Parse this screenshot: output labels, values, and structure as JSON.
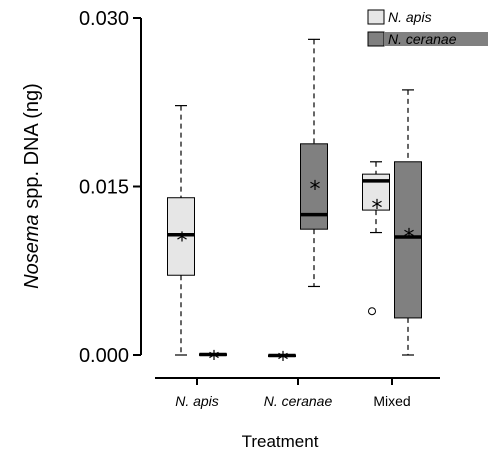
{
  "chart_data": {
    "type": "boxplot",
    "title": "",
    "xlabel": "Treatment",
    "ylabel_prefix": "Nosema",
    "ylabel_suffix": " spp. DNA (ng)",
    "ylim": [
      0.0,
      0.03
    ],
    "yticks": [
      0.0,
      0.015,
      0.03
    ],
    "ytick_labels": [
      "0.000",
      "0.015",
      "0.030"
    ],
    "categories": [
      "N. apis",
      "N. ceranae",
      "Mixed"
    ],
    "legend": {
      "position": "top-right",
      "entries": [
        {
          "name": "N. apis",
          "color": "#e6e6e6"
        },
        {
          "name": "N. ceranae",
          "color": "#808080"
        }
      ]
    },
    "mean_marker": "*",
    "outlier_marker": "o",
    "boxes": [
      {
        "category": "N. apis",
        "series": "N. apis",
        "min": 0.0,
        "q1": 0.0071,
        "median": 0.0107,
        "q3": 0.014,
        "max": 0.0222,
        "mean": 0.0106,
        "outliers": []
      },
      {
        "category": "N. apis",
        "series": "N. ceranae",
        "min": 0.0,
        "q1": 0.0,
        "median": 5e-05,
        "q3": 0.0001,
        "max": 0.0001,
        "mean": 5e-05,
        "outliers": []
      },
      {
        "category": "N. ceranae",
        "series": "N. apis",
        "min": -0.0001,
        "q1": -0.0001,
        "median": -5e-05,
        "q3": 0.0,
        "max": 0.0,
        "mean": -5e-05,
        "outliers": []
      },
      {
        "category": "N. ceranae",
        "series": "N. ceranae",
        "min": 0.0061,
        "q1": 0.0112,
        "median": 0.0125,
        "q3": 0.0188,
        "max": 0.0281,
        "mean": 0.0152,
        "outliers": []
      },
      {
        "category": "Mixed",
        "series": "N. apis",
        "min": 0.0109,
        "q1": 0.0129,
        "median": 0.0155,
        "q3": 0.0161,
        "max": 0.0172,
        "mean": 0.0135,
        "outliers": [
          0.0039
        ]
      },
      {
        "category": "Mixed",
        "series": "N. ceranae",
        "min": 0.0,
        "q1": 0.0033,
        "median": 0.0105,
        "q3": 0.0172,
        "max": 0.0236,
        "mean": 0.0109,
        "outliers": []
      }
    ],
    "colors": {
      "n_apis": "#e6e6e6",
      "n_ceranae": "#808080",
      "stroke": "#000000"
    }
  }
}
